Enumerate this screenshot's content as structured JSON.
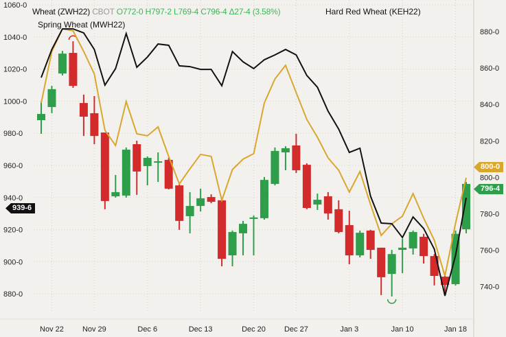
{
  "legend": {
    "symbol": "Wheat (ZWH22)",
    "exchange": "CBOT",
    "open": "O772-0",
    "high": "H797-2",
    "low": "L769-4",
    "close": "C796-4",
    "change": "Δ27-4 (3.58%)",
    "series2": "Hard Red Wheat (KEH22)",
    "series3": "Spring Wheat (MWH22)"
  },
  "badges": {
    "left": "939-6",
    "right_spring": "800-0",
    "right_close": "796-4"
  },
  "colors": {
    "up": "#2f9e4b",
    "down": "#d32b2b",
    "spring": "#d9a62e",
    "hard_red": "#111111",
    "background": "#f3f1ed"
  },
  "chart_data": {
    "type": "candlestick",
    "grid": true,
    "left_axis": {
      "ticks": [
        "1060-0",
        "1040-0",
        "1020-0",
        "1000-0",
        "980-0",
        "960-0",
        "940-0",
        "920-0",
        "900-0",
        "880-0"
      ],
      "values": [
        1060,
        1040,
        1020,
        1000,
        980,
        960,
        940,
        920,
        900,
        880
      ]
    },
    "right_axis": {
      "ticks": [
        "880-0",
        "860-0",
        "840-0",
        "820-0",
        "800-0",
        "780-0",
        "760-0",
        "740-0"
      ],
      "values": [
        880,
        860,
        840,
        820,
        800,
        780,
        760,
        740
      ]
    },
    "x_ticks": [
      {
        "label": "Nov 22",
        "date": "2021-11-22"
      },
      {
        "label": "Nov 29",
        "date": "2021-11-29"
      },
      {
        "label": "Dec 6",
        "date": "2021-12-06"
      },
      {
        "label": "Dec 13",
        "date": "2021-12-13"
      },
      {
        "label": "Dec 20",
        "date": "2021-12-20"
      },
      {
        "label": "Dec 27",
        "date": "2021-12-27"
      },
      {
        "label": "Jan 3",
        "date": "2022-01-03"
      },
      {
        "label": "Jan 10",
        "date": "2022-01-10"
      },
      {
        "label": "Jan 18",
        "date": "2022-01-18"
      }
    ],
    "dates": [
      "2021-11-19",
      "2021-11-22",
      "2021-11-23",
      "2021-11-24",
      "2021-11-26",
      "2021-11-29",
      "2021-11-30",
      "2021-12-01",
      "2021-12-02",
      "2021-12-03",
      "2021-12-06",
      "2021-12-07",
      "2021-12-08",
      "2021-12-09",
      "2021-12-10",
      "2021-12-13",
      "2021-12-14",
      "2021-12-15",
      "2021-12-16",
      "2021-12-17",
      "2021-12-20",
      "2021-12-21",
      "2021-12-22",
      "2021-12-23",
      "2021-12-27",
      "2021-12-28",
      "2021-12-29",
      "2021-12-30",
      "2021-12-31",
      "2022-01-03",
      "2022-01-04",
      "2022-01-05",
      "2022-01-06",
      "2022-01-07",
      "2022-01-10",
      "2022-01-11",
      "2022-01-12",
      "2022-01-13",
      "2022-01-14",
      "2022-01-18",
      "2022-01-19"
    ],
    "wheat_ohlc_right_axis": [
      [
        831.4,
        841.6,
        823.9,
        834.8
      ],
      [
        838.6,
        850.2,
        835.2,
        848.4
      ],
      [
        857.0,
        869.4,
        855.9,
        867.9
      ],
      [
        868.3,
        874.7,
        849.1,
        850.2
      ],
      [
        840.8,
        845.4,
        822.7,
        833.3
      ],
      [
        835.2,
        844.6,
        818.2,
        822.7
      ],
      [
        824.6,
        824.6,
        782.5,
        787.0
      ],
      [
        789.6,
        801.3,
        788.9,
        791.9
      ],
      [
        790.0,
        816.4,
        788.9,
        815.2
      ],
      [
        818.2,
        820.1,
        790.4,
        803.2
      ],
      [
        806.2,
        811.5,
        795.6,
        810.7
      ],
      [
        808.1,
        813.7,
        797.5,
        808.8
      ],
      [
        809.6,
        810.7,
        793.4,
        793.8
      ],
      [
        795.6,
        796.4,
        771.2,
        776.1
      ],
      [
        778.7,
        791.9,
        769.3,
        784.3
      ],
      [
        784.3,
        793.8,
        781.3,
        788.5
      ],
      [
        789.2,
        790.7,
        785.8,
        786.6
      ],
      [
        787.4,
        788.1,
        751.2,
        755.3
      ],
      [
        757.2,
        770.8,
        751.2,
        770.0
      ],
      [
        769.3,
        776.1,
        757.2,
        774.5
      ],
      [
        777.2,
        779.1,
        757.2,
        778.0
      ],
      [
        777.6,
        800.2,
        776.8,
        798.6
      ],
      [
        796.4,
        816.4,
        795.6,
        814.5
      ],
      [
        813.7,
        817.1,
        803.9,
        816.0
      ],
      [
        817.5,
        823.9,
        802.4,
        803.9
      ],
      [
        806.9,
        807.7,
        782.5,
        783.2
      ],
      [
        785.1,
        791.1,
        782.1,
        787.7
      ],
      [
        789.6,
        791.9,
        776.8,
        780.2
      ],
      [
        782.5,
        787.4,
        769.3,
        770.0
      ],
      [
        773.8,
        781.7,
        752.3,
        757.2
      ],
      [
        757.2,
        770.8,
        756.1,
        769.6
      ],
      [
        770.8,
        771.2,
        755.3,
        760.2
      ],
      [
        761.4,
        761.4,
        735.4,
        745.2
      ],
      [
        747.0,
        760.2,
        734.6,
        757.9
      ],
      [
        760.2,
        766.3,
        747.4,
        761.4
      ],
      [
        761.0,
        770.8,
        757.6,
        770.0
      ],
      [
        767.4,
        769.0,
        752.7,
        756.8
      ],
      [
        756.8,
        757.9,
        740.7,
        745.9
      ],
      [
        745.5,
        745.9,
        736.1,
        741.0
      ],
      [
        741.4,
        770.8,
        740.7,
        769.0
      ],
      [
        771.5,
        797.5,
        769.3,
        796.4
      ]
    ],
    "spring_wheat_right_axis": [
      840.8,
      869.1,
      881.5,
      880.4,
      869.1,
      856.7,
      825.8,
      817.5,
      841.6,
      823.9,
      822.8,
      827.7,
      811.5,
      796.4,
      804.7,
      812.6,
      811.5,
      787.4,
      804.3,
      810.0,
      813.0,
      840.8,
      854.0,
      861.5,
      846.5,
      831.8,
      822.0,
      810.7,
      803.9,
      791.9,
      803.2,
      785.1,
      768.1,
      774.5,
      778.7,
      791.1,
      777.6,
      765.5,
      745.9,
      774.9,
      799.8
    ],
    "hard_red_wheat_left_axis": [
      1014.7,
      1032.2,
      1045.0,
      1045.0,
      1042.5,
      1032.2,
      1010.0,
      1020.3,
      1042.1,
      1021.1,
      1027.5,
      1035.6,
      1034.8,
      1022.0,
      1021.5,
      1019.8,
      1019.8,
      1009.6,
      1030.9,
      1024.5,
      1020.3,
      1025.8,
      1028.8,
      1032.2,
      1028.8,
      1016.0,
      1008.7,
      993.8,
      982.6,
      968.1,
      970.7,
      940.8,
      924.1,
      923.7,
      915.1,
      927.9,
      920.7,
      907.9,
      878.8,
      904.0,
      939.9
    ]
  }
}
